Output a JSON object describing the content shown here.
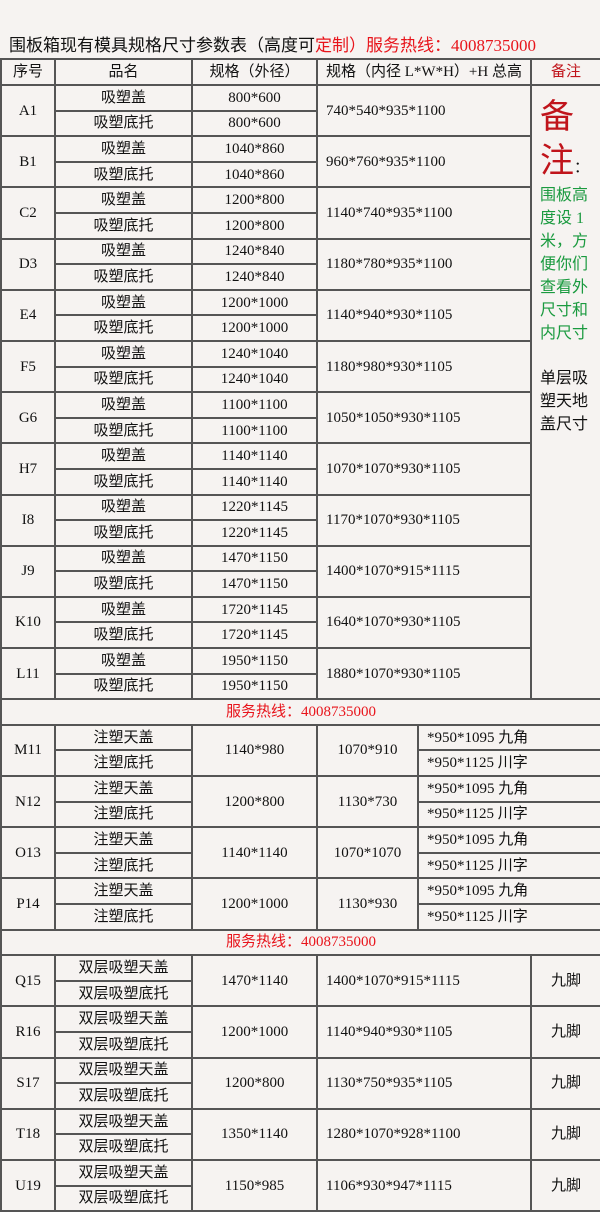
{
  "title": {
    "part1": "围板箱现有模具规格尺寸参数表（高度可",
    "part2": "定制",
    "part3": "）服务热线：4008735000"
  },
  "headers": [
    "序号",
    "品名",
    "规格（外径）",
    "规格（内径 L*W*H）+H 总高",
    "备注"
  ],
  "remark": {
    "big1": "备",
    "big2": "注",
    "colon": "：",
    "green": "围板高度设 1米，方便你们查看外尺寸和内尺寸",
    "black": "单层吸塑天地盖尺寸"
  },
  "hotline": "服务热线：4008735000",
  "section1": [
    {
      "id": "A1",
      "names": [
        "吸塑盖",
        "吸塑底托"
      ],
      "outer": [
        "800*600",
        "800*600"
      ],
      "inner": "740*540*935*1100"
    },
    {
      "id": "B1",
      "names": [
        "吸塑盖",
        "吸塑底托"
      ],
      "outer": [
        "1040*860",
        "1040*860"
      ],
      "inner": "960*760*935*1100"
    },
    {
      "id": "C2",
      "names": [
        "吸塑盖",
        "吸塑底托"
      ],
      "outer": [
        "1200*800",
        "1200*800"
      ],
      "inner": "1140*740*935*1100"
    },
    {
      "id": "D3",
      "names": [
        "吸塑盖",
        "吸塑底托"
      ],
      "outer": [
        "1240*840",
        "1240*840"
      ],
      "inner": "1180*780*935*1100"
    },
    {
      "id": "E4",
      "names": [
        "吸塑盖",
        "吸塑底托"
      ],
      "outer": [
        "1200*1000",
        "1200*1000"
      ],
      "inner": "1140*940*930*1105"
    },
    {
      "id": "F5",
      "names": [
        "吸塑盖",
        "吸塑底托"
      ],
      "outer": [
        "1240*1040",
        "1240*1040"
      ],
      "inner": "1180*980*930*1105"
    },
    {
      "id": "G6",
      "names": [
        "吸塑盖",
        "吸塑底托"
      ],
      "outer": [
        "1100*1100",
        "1100*1100"
      ],
      "inner": "1050*1050*930*1105"
    },
    {
      "id": "H7",
      "names": [
        "吸塑盖",
        "吸塑底托"
      ],
      "outer": [
        "1140*1140",
        "1140*1140"
      ],
      "inner": "1070*1070*930*1105"
    },
    {
      "id": "I8",
      "names": [
        "吸塑盖",
        "吸塑底托"
      ],
      "outer": [
        "1220*1145",
        "1220*1145"
      ],
      "inner": "1170*1070*930*1105"
    },
    {
      "id": "J9",
      "names": [
        "吸塑盖",
        "吸塑底托"
      ],
      "outer": [
        "1470*1150",
        "1470*1150"
      ],
      "inner": "1400*1070*915*1115"
    },
    {
      "id": "K10",
      "names": [
        "吸塑盖",
        "吸塑底托"
      ],
      "outer": [
        "1720*1145",
        "1720*1145"
      ],
      "inner": "1640*1070*930*1105"
    },
    {
      "id": "L11",
      "names": [
        "吸塑盖",
        "吸塑底托"
      ],
      "outer": [
        "1950*1150",
        "1950*1150"
      ],
      "inner": "1880*1070*930*1105"
    }
  ],
  "section2": [
    {
      "id": "M11",
      "names": [
        "注塑天盖",
        "注塑底托"
      ],
      "outer": "1140*980",
      "inner": "1070*910",
      "height": [
        "*950*1095 九角",
        "*950*1125 川字"
      ]
    },
    {
      "id": "N12",
      "names": [
        "注塑天盖",
        "注塑底托"
      ],
      "outer": "1200*800",
      "inner": "1130*730",
      "height": [
        "*950*1095 九角",
        "*950*1125 川字"
      ]
    },
    {
      "id": "O13",
      "names": [
        "注塑天盖",
        "注塑底托"
      ],
      "outer": "1140*1140",
      "inner": "1070*1070",
      "height": [
        "*950*1095 九角",
        "*950*1125 川字"
      ]
    },
    {
      "id": "P14",
      "names": [
        "注塑天盖",
        "注塑底托"
      ],
      "outer": "1200*1000",
      "inner": "1130*930",
      "height": [
        "*950*1095 九角",
        "*950*1125 川字"
      ]
    }
  ],
  "section3": [
    {
      "id": "Q15",
      "names": [
        "双层吸塑天盖",
        "双层吸塑底托"
      ],
      "outer": "1470*1140",
      "inner": "1400*1070*915*1115",
      "note": "九脚"
    },
    {
      "id": "R16",
      "names": [
        "双层吸塑天盖",
        "双层吸塑底托"
      ],
      "outer": "1200*1000",
      "inner": "1140*940*930*1105",
      "note": "九脚"
    },
    {
      "id": "S17",
      "names": [
        "双层吸塑天盖",
        "双层吸塑底托"
      ],
      "outer": "1200*800",
      "inner": "1130*750*935*1105",
      "note": "九脚"
    },
    {
      "id": "T18",
      "names": [
        "双层吸塑天盖",
        "双层吸塑底托"
      ],
      "outer": "1350*1140",
      "inner": "1280*1070*928*1100",
      "note": "九脚"
    },
    {
      "id": "U19",
      "names": [
        "双层吸塑天盖",
        "双层吸塑底托"
      ],
      "outer": "1150*985",
      "inner": "1106*930*947*1115",
      "note": "九脚"
    }
  ]
}
